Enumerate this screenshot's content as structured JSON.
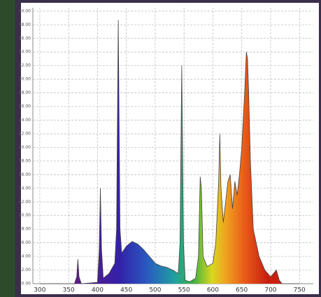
{
  "chart_data": {
    "type": "area",
    "x": [
      300,
      360,
      364,
      366,
      368,
      372,
      400,
      403,
      405,
      407,
      410,
      420,
      430,
      433,
      436,
      439,
      442,
      450,
      460,
      470,
      480,
      490,
      500,
      510,
      520,
      530,
      540,
      543,
      546,
      549,
      552,
      560,
      570,
      575,
      578,
      580,
      583,
      590,
      600,
      605,
      610,
      612,
      614,
      618,
      622,
      626,
      630,
      634,
      638,
      642,
      646,
      650,
      655,
      658,
      660,
      662,
      665,
      670,
      680,
      690,
      700,
      705,
      710,
      715,
      720,
      750
    ],
    "values": [
      0,
      0,
      1,
      3.6,
      1,
      0,
      0.2,
      5,
      14,
      5,
      0.8,
      1.5,
      3,
      8,
      38.7,
      8,
      4.5,
      5.5,
      6.2,
      5.8,
      5,
      4,
      3,
      2.6,
      2.4,
      2,
      1.5,
      6,
      32,
      6,
      0.5,
      0.3,
      0.8,
      4,
      15.7,
      14,
      4,
      2.5,
      3,
      6,
      15,
      22,
      14,
      9,
      12,
      15,
      16,
      11,
      15,
      13,
      16,
      20,
      28,
      34,
      33,
      28,
      18,
      8,
      4,
      2,
      1,
      1.5,
      2,
      0.5,
      0,
      0
    ],
    "xlim": [
      288,
      774
    ],
    "ylim": [
      0,
      40.5
    ],
    "xticks": [
      300,
      350,
      400,
      450,
      500,
      550,
      600,
      650,
      700,
      750
    ],
    "yticks": [
      {
        "value": 0,
        "label": "0.00"
      },
      {
        "value": 2,
        "label": "2.00"
      },
      {
        "value": 4,
        "label": "4.00"
      },
      {
        "value": 6,
        "label": "6.00"
      },
      {
        "value": 8,
        "label": "8.00"
      },
      {
        "value": 10,
        "label": "10.00"
      },
      {
        "value": 12,
        "label": "12.00"
      },
      {
        "value": 14,
        "label": "14.00"
      },
      {
        "value": 16,
        "label": "16.00"
      },
      {
        "value": 18,
        "label": "18.00"
      },
      {
        "value": 20,
        "label": "20.00"
      },
      {
        "value": 22,
        "label": "22.00"
      },
      {
        "value": 24,
        "label": "24.00"
      },
      {
        "value": 26,
        "label": "26.00"
      },
      {
        "value": 28,
        "label": "28.00"
      },
      {
        "value": 30,
        "label": "30.00"
      },
      {
        "value": 32,
        "label": "32.00"
      },
      {
        "value": 34,
        "label": "34.00"
      },
      {
        "value": 36,
        "label": "36.00"
      },
      {
        "value": 38,
        "label": "38.00"
      },
      {
        "value": 40,
        "label": "40.00"
      }
    ],
    "grid": true
  }
}
